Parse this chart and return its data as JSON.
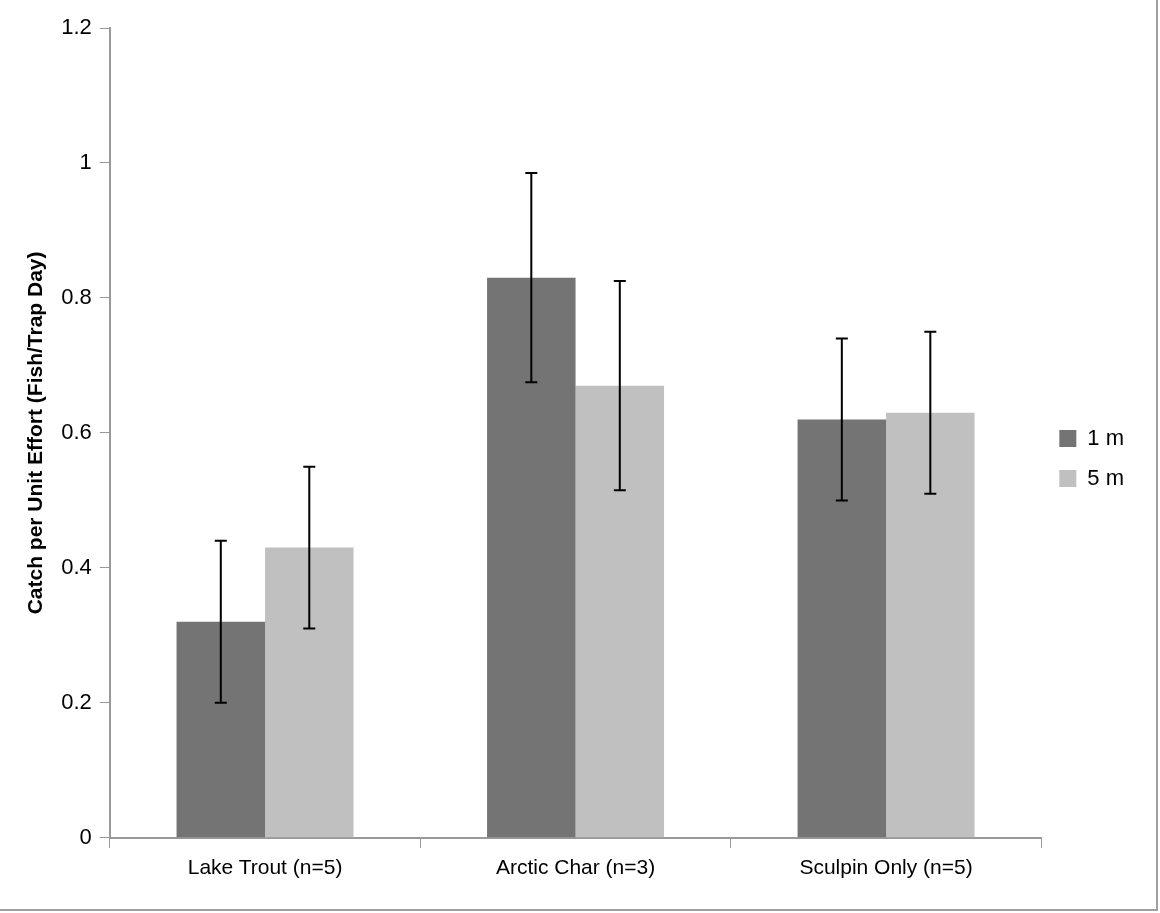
{
  "chart_data": {
    "type": "bar",
    "ylabel": "Catch per Unit Effort (Fish/Trap Day)",
    "categories": [
      "Lake Trout (n=5)",
      "Arctic Char (n=3)",
      "Sculpin Only (n=5)"
    ],
    "series": [
      {
        "name": "1 m",
        "color": "#747474",
        "values": [
          0.32,
          0.83,
          0.62
        ],
        "errors": [
          0.12,
          0.155,
          0.12
        ]
      },
      {
        "name": "5 m",
        "color": "#c0c0c0",
        "values": [
          0.43,
          0.67,
          0.63
        ],
        "errors": [
          0.12,
          0.155,
          0.12
        ]
      }
    ],
    "ylim": [
      0,
      1.2
    ],
    "yticks": [
      0,
      0.2,
      0.4,
      0.6,
      0.8,
      1,
      1.2
    ],
    "grid": false,
    "legend": "right"
  }
}
